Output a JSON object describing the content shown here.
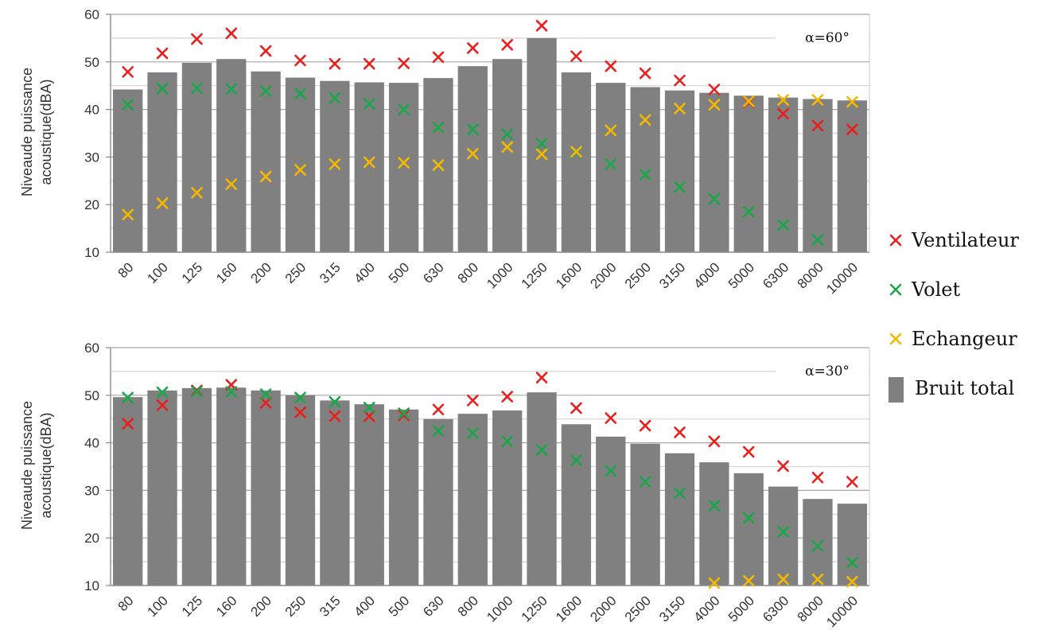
{
  "chart_data": [
    {
      "type": "bar",
      "annotation": "α=60°",
      "ylabel": "Niveaude puissance acoustique(dBA)",
      "ylabel_lines": [
        "Niveaude puissance",
        "acoustique(dBA)"
      ],
      "ylim": [
        10,
        60
      ],
      "yticks": [
        10,
        20,
        30,
        40,
        50,
        60
      ],
      "categories": [
        "80",
        "100",
        "125",
        "160",
        "200",
        "250",
        "315",
        "400",
        "500",
        "630",
        "800",
        "1000",
        "1250",
        "1600",
        "2000",
        "2500",
        "3150",
        "4000",
        "5000",
        "6300",
        "8000",
        "10000"
      ],
      "grid": true,
      "legend": "right",
      "series": [
        {
          "name": "Bruit total",
          "kind": "bar",
          "color": "#808080",
          "values": [
            44.2,
            47.8,
            49.8,
            50.6,
            48.0,
            46.7,
            46.0,
            45.7,
            45.6,
            46.6,
            49.1,
            50.6,
            55.0,
            47.8,
            45.6,
            44.7,
            44.0,
            43.5,
            42.9,
            42.5,
            42.2,
            41.9
          ]
        },
        {
          "name": "Ventilateur",
          "kind": "marker",
          "color": "#e8201d",
          "values": [
            47.9,
            51.8,
            54.8,
            56.0,
            52.3,
            50.3,
            49.6,
            49.6,
            49.7,
            51.0,
            52.9,
            53.6,
            57.6,
            51.2,
            49.1,
            47.6,
            46.1,
            44.2,
            41.5,
            39.1,
            36.6,
            35.8
          ]
        },
        {
          "name": "Volet",
          "kind": "marker",
          "color": "#1aa64a",
          "values": [
            41.0,
            44.4,
            44.5,
            44.3,
            43.9,
            43.3,
            42.4,
            41.2,
            40.0,
            36.2,
            35.8,
            34.8,
            32.8,
            30.9,
            28.5,
            26.3,
            23.7,
            21.2,
            18.5,
            15.7,
            12.6,
            null
          ]
        },
        {
          "name": "Echangeur",
          "kind": "marker",
          "color": "#f5b800",
          "values": [
            17.9,
            20.3,
            22.5,
            24.3,
            25.9,
            27.3,
            28.5,
            28.9,
            28.8,
            28.3,
            30.7,
            32.1,
            30.6,
            31.1,
            35.6,
            37.8,
            40.2,
            41.0,
            41.7,
            42.0,
            42.0,
            41.6
          ]
        }
      ]
    },
    {
      "type": "bar",
      "annotation": "α=30°",
      "ylabel": "Niveaude puissance acoustique(dBA)",
      "ylabel_lines": [
        "Niveaude puissance",
        "acoustique(dBA)"
      ],
      "ylim": [
        10,
        60
      ],
      "yticks": [
        10,
        20,
        30,
        40,
        50,
        60
      ],
      "categories": [
        "80",
        "100",
        "125",
        "160",
        "200",
        "250",
        "315",
        "400",
        "500",
        "630",
        "800",
        "1000",
        "1250",
        "1600",
        "2000",
        "2500",
        "3150",
        "4000",
        "5000",
        "6300",
        "8000",
        "10000"
      ],
      "grid": true,
      "legend": "right",
      "series": [
        {
          "name": "Bruit total",
          "kind": "bar",
          "color": "#808080",
          "values": [
            49.6,
            51.0,
            51.5,
            51.6,
            51.0,
            50.0,
            48.9,
            48.1,
            47.0,
            45.0,
            46.1,
            46.8,
            50.6,
            43.9,
            41.3,
            39.8,
            37.8,
            35.9,
            33.6,
            30.8,
            28.2,
            27.2
          ]
        },
        {
          "name": "Ventilateur",
          "kind": "marker",
          "color": "#e8201d",
          "values": [
            44.0,
            47.9,
            51.0,
            52.2,
            48.4,
            46.4,
            45.6,
            45.6,
            45.8,
            47.0,
            48.9,
            49.7,
            53.7,
            47.3,
            45.2,
            43.6,
            42.2,
            40.3,
            38.1,
            35.1,
            32.7,
            31.8
          ]
        },
        {
          "name": "Volet",
          "kind": "marker",
          "color": "#1aa64a",
          "values": [
            49.5,
            50.6,
            50.8,
            50.7,
            50.2,
            49.5,
            48.6,
            47.4,
            46.2,
            42.5,
            42.0,
            40.3,
            38.5,
            36.3,
            34.1,
            31.8,
            29.4,
            26.8,
            24.2,
            21.3,
            18.3,
            14.8
          ]
        },
        {
          "name": "Echangeur",
          "kind": "marker",
          "color": "#f5b800",
          "values": [
            null,
            null,
            null,
            null,
            null,
            null,
            null,
            null,
            null,
            null,
            null,
            null,
            null,
            null,
            null,
            null,
            null,
            10.5,
            11.0,
            11.3,
            11.3,
            10.8
          ]
        }
      ]
    }
  ],
  "legend_items": [
    {
      "label": "Ventilateur",
      "color": "#e8201d",
      "kind": "marker"
    },
    {
      "label": "Volet",
      "color": "#1aa64a",
      "kind": "marker"
    },
    {
      "label": "Echangeur",
      "color": "#f5b800",
      "kind": "marker"
    },
    {
      "label": "Bruit total",
      "color": "#808080",
      "kind": "bar"
    }
  ]
}
